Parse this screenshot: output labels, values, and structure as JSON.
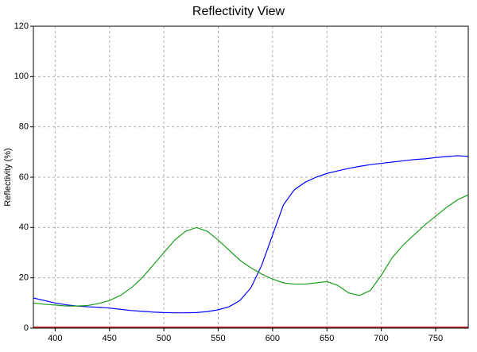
{
  "chart_data": {
    "type": "line",
    "title": "Reflectivity View",
    "y_label": "Reflectivity (%)",
    "x": [
      380,
      390,
      400,
      410,
      420,
      430,
      440,
      450,
      460,
      470,
      480,
      490,
      500,
      510,
      520,
      530,
      540,
      550,
      560,
      570,
      580,
      590,
      600,
      610,
      620,
      630,
      640,
      650,
      660,
      670,
      680,
      690,
      700,
      710,
      720,
      730,
      740,
      750,
      760,
      770,
      780
    ],
    "series": [
      {
        "color": "#0000ff",
        "values": [
          12,
          11,
          10,
          9.3,
          8.8,
          8.5,
          8.3,
          8,
          7.5,
          7,
          6.7,
          6.4,
          6.2,
          6.1,
          6.1,
          6.2,
          6.6,
          7.3,
          8.5,
          11,
          16,
          25,
          37,
          49,
          55,
          58,
          60,
          61.5,
          62.5,
          63.5,
          64.3,
          65,
          65.5,
          66,
          66.5,
          67,
          67.3,
          67.8,
          68.2,
          68.5,
          68.3
        ]
      },
      {
        "color": "#1a9e1a",
        "values": [
          10,
          9.5,
          9.2,
          8.8,
          8.8,
          9,
          9.8,
          11,
          13,
          16,
          20,
          25,
          30,
          35,
          38.5,
          40,
          38.5,
          35,
          31,
          27,
          24,
          21.5,
          19.5,
          18,
          17.5,
          17.5,
          18,
          18.5,
          17,
          14,
          13,
          15,
          21,
          28,
          33,
          37,
          41,
          44.5,
          48,
          51,
          53
        ]
      },
      {
        "color": "#c00000",
        "values": [
          0.4,
          0.4,
          0.4,
          0.4,
          0.4,
          0.4,
          0.4,
          0.4,
          0.4,
          0.4,
          0.4,
          0.4,
          0.4,
          0.4,
          0.4,
          0.4,
          0.4,
          0.4,
          0.4,
          0.4,
          0.4,
          0.4,
          0.4,
          0.4,
          0.4,
          0.4,
          0.4,
          0.4,
          0.4,
          0.4,
          0.4,
          0.4,
          0.4,
          0.4,
          0.4,
          0.4,
          0.4,
          0.4,
          0.4,
          0.4,
          0.4
        ]
      }
    ],
    "xlim": [
      380,
      780
    ],
    "xticks": [
      400,
      450,
      500,
      550,
      600,
      650,
      700,
      750
    ],
    "ylim": [
      0,
      120
    ],
    "yticks": [
      0,
      20,
      40,
      60,
      80,
      100,
      120
    ],
    "grid": true
  }
}
